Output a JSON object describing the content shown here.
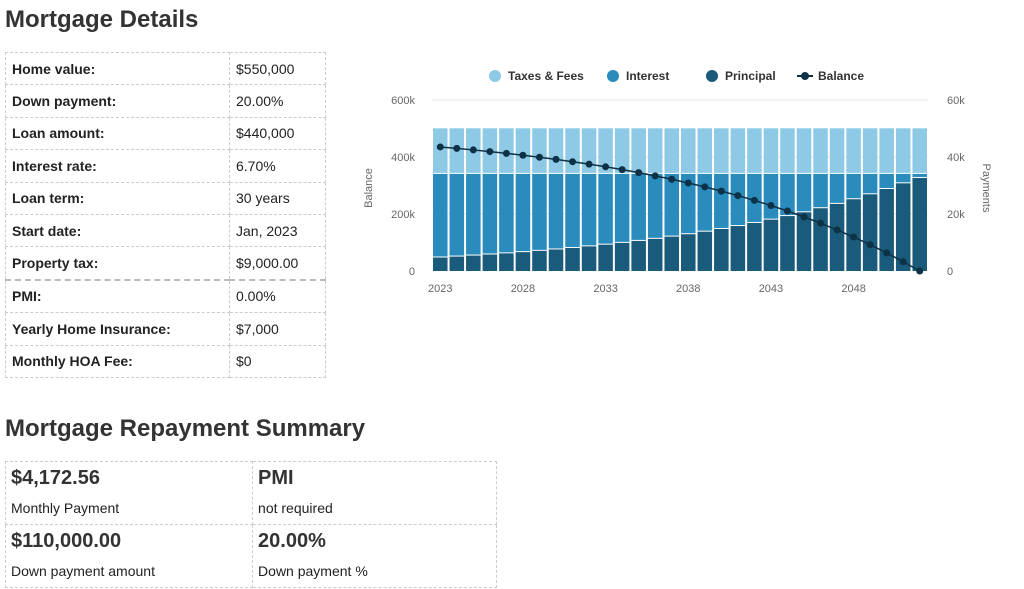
{
  "details": {
    "title": "Mortgage Details",
    "rows": [
      {
        "label": "Home value:",
        "value": "$550,000"
      },
      {
        "label": "Down payment:",
        "value": "20.00%"
      },
      {
        "label": "Loan amount:",
        "value": "$440,000"
      },
      {
        "label": "Interest rate:",
        "value": "6.70%"
      },
      {
        "label": "Loan term:",
        "value": "30 years"
      },
      {
        "label": "Start date:",
        "value": "Jan, 2023"
      },
      {
        "label": "Property tax:",
        "value": "$9,000.00"
      },
      {
        "label": "PMI:",
        "value": "0.00%"
      },
      {
        "label": "Yearly Home Insurance:",
        "value": "$7,000"
      },
      {
        "label": "Monthly HOA Fee:",
        "value": "$0"
      }
    ]
  },
  "summary": {
    "title": "Mortgage Repayment Summary",
    "cells": [
      {
        "value": "$4,172.56",
        "label": "Monthly Payment"
      },
      {
        "value": "PMI",
        "label": "not required"
      },
      {
        "value": "$110,000.00",
        "label": "Down payment amount"
      },
      {
        "value": "20.00%",
        "label": "Down payment %"
      }
    ]
  },
  "chart_data": {
    "type": "bar",
    "stacked": true,
    "legend": [
      "Taxes & Fees",
      "Interest",
      "Principal",
      "Balance"
    ],
    "legend_position": "top",
    "colors": {
      "taxes": "#8ecae6",
      "interest": "#2a8bbd",
      "principal": "#1a5a7a",
      "balance": "#0d3146"
    },
    "ylabel": "Balance",
    "y2label": "Payments",
    "ylim": [
      0,
      600000
    ],
    "y2lim": [
      0,
      60000
    ],
    "yticks": [
      "0",
      "200k",
      "400k",
      "600k"
    ],
    "y2ticks": [
      "0",
      "20k",
      "40k",
      "60k"
    ],
    "xticks": [
      "2023",
      "2028",
      "2033",
      "2038",
      "2043",
      "2048"
    ],
    "years": [
      2023,
      2024,
      2025,
      2026,
      2027,
      2028,
      2029,
      2030,
      2031,
      2032,
      2033,
      2034,
      2035,
      2036,
      2037,
      2038,
      2039,
      2040,
      2041,
      2042,
      2043,
      2044,
      2045,
      2046,
      2047,
      2048,
      2049,
      2050,
      2051,
      2052
    ],
    "principal": [
      4735,
      5062,
      5412,
      5786,
      6186,
      6614,
      7071,
      7560,
      8082,
      8641,
      9238,
      9876,
      10559,
      11289,
      12069,
      12903,
      13795,
      14749,
      15768,
      16858,
      18023,
      19269,
      20601,
      22025,
      23547,
      25175,
      26915,
      28775,
      30764,
      32650
    ],
    "interest": [
      29336,
      29009,
      28659,
      28285,
      27885,
      27457,
      27000,
      26511,
      25989,
      25430,
      24833,
      24195,
      23512,
      22782,
      22002,
      21168,
      20276,
      19322,
      18303,
      17213,
      16048,
      14802,
      13470,
      12046,
      10524,
      8896,
      7156,
      5296,
      3307,
      1421
    ],
    "taxes_fees": [
      16000,
      16000,
      16000,
      16000,
      16000,
      16000,
      16000,
      16000,
      16000,
      16000,
      16000,
      16000,
      16000,
      16000,
      16000,
      16000,
      16000,
      16000,
      16000,
      16000,
      16000,
      16000,
      16000,
      16000,
      16000,
      16000,
      16000,
      16000,
      16000,
      16000
    ],
    "balance": [
      435265,
      430203,
      424791,
      419005,
      412819,
      406205,
      399134,
      391574,
      383492,
      374851,
      365613,
      355737,
      345178,
      333889,
      321820,
      308917,
      295122,
      280373,
      264605,
      247747,
      229724,
      210455,
      189854,
      167829,
      144282,
      119107,
      92192,
      63417,
      32653,
      0
    ]
  }
}
